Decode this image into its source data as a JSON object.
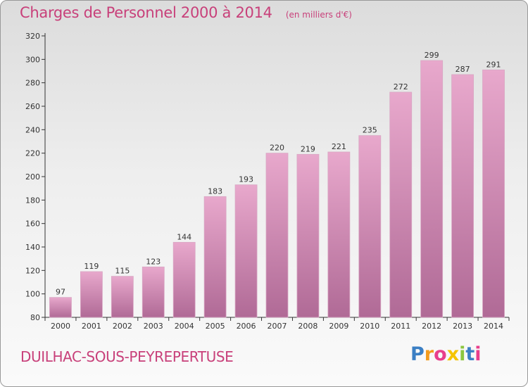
{
  "header": {
    "title": "Charges de Personnel 2000 à 2014",
    "unit_note": "(en milliers d'€)"
  },
  "footer": {
    "commune": "DUILHAC-SOUS-PEYREPERTUSE",
    "logo_letters": [
      {
        "ch": "P",
        "color": "#3b7fc4"
      },
      {
        "ch": "r",
        "color": "#f29b1d"
      },
      {
        "ch": "o",
        "color": "#e83e8c"
      },
      {
        "ch": "x",
        "color": "#f5c400"
      },
      {
        "ch": "i",
        "color": "#8cc63f"
      },
      {
        "ch": "t",
        "color": "#3b7fc4"
      },
      {
        "ch": "i",
        "color": "#e83e8c"
      }
    ]
  },
  "colors": {
    "title": "#c8407a",
    "bar_top": "#e8a8cc",
    "bar_bottom": "#b06a96"
  },
  "chart_data": {
    "type": "bar",
    "title": "Charges de Personnel 2000 à 2014",
    "subtitle": "(en milliers d'€)",
    "categories": [
      "2000",
      "2001",
      "2002",
      "2003",
      "2004",
      "2005",
      "2006",
      "2007",
      "2008",
      "2009",
      "2010",
      "2011",
      "2012",
      "2013",
      "2014"
    ],
    "values": [
      97,
      119,
      115,
      123,
      144,
      183,
      193,
      220,
      219,
      221,
      235,
      272,
      299,
      287,
      291
    ],
    "ylim": [
      80,
      320
    ],
    "yticks": [
      80,
      100,
      120,
      140,
      160,
      180,
      200,
      220,
      240,
      260,
      280,
      300,
      320
    ],
    "grid": false,
    "xlabel": "",
    "ylabel": ""
  }
}
